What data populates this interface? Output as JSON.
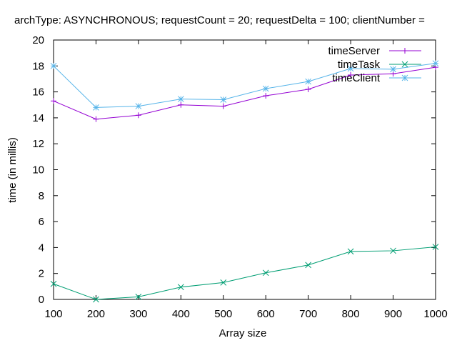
{
  "chart_data": {
    "type": "line",
    "title": "archType: ASYNCHRONOUS; requestCount = 20; requestDelta = 100; clientNumber =",
    "xlabel": "Array size",
    "ylabel": "time (in millis)",
    "xlim": [
      100,
      1000
    ],
    "ylim": [
      0,
      20
    ],
    "x_ticks": [
      "100",
      "200",
      "300",
      "400",
      "500",
      "600",
      "700",
      "800",
      "900",
      "1000"
    ],
    "y_ticks": [
      "0",
      "2",
      "4",
      "6",
      "8",
      "10",
      "12",
      "14",
      "16",
      "18",
      "20"
    ],
    "grid": false,
    "legend_position": "top-right",
    "x": [
      100,
      200,
      300,
      400,
      500,
      600,
      700,
      800,
      900,
      1000
    ],
    "series": [
      {
        "name": "timeServer",
        "color": "#9400d3",
        "marker": "plus",
        "values": [
          15.3,
          13.9,
          14.2,
          15.0,
          14.9,
          15.7,
          16.2,
          17.3,
          17.4,
          17.9
        ]
      },
      {
        "name": "timeTask",
        "color": "#009e73",
        "marker": "cross",
        "values": [
          1.2,
          0.0,
          0.2,
          0.95,
          1.3,
          2.05,
          2.65,
          3.7,
          3.75,
          4.05
        ]
      },
      {
        "name": "timeClient",
        "color": "#56b4e9",
        "marker": "star",
        "values": [
          18.0,
          14.8,
          14.9,
          15.45,
          15.4,
          16.25,
          16.8,
          17.8,
          17.75,
          18.2
        ]
      }
    ]
  }
}
